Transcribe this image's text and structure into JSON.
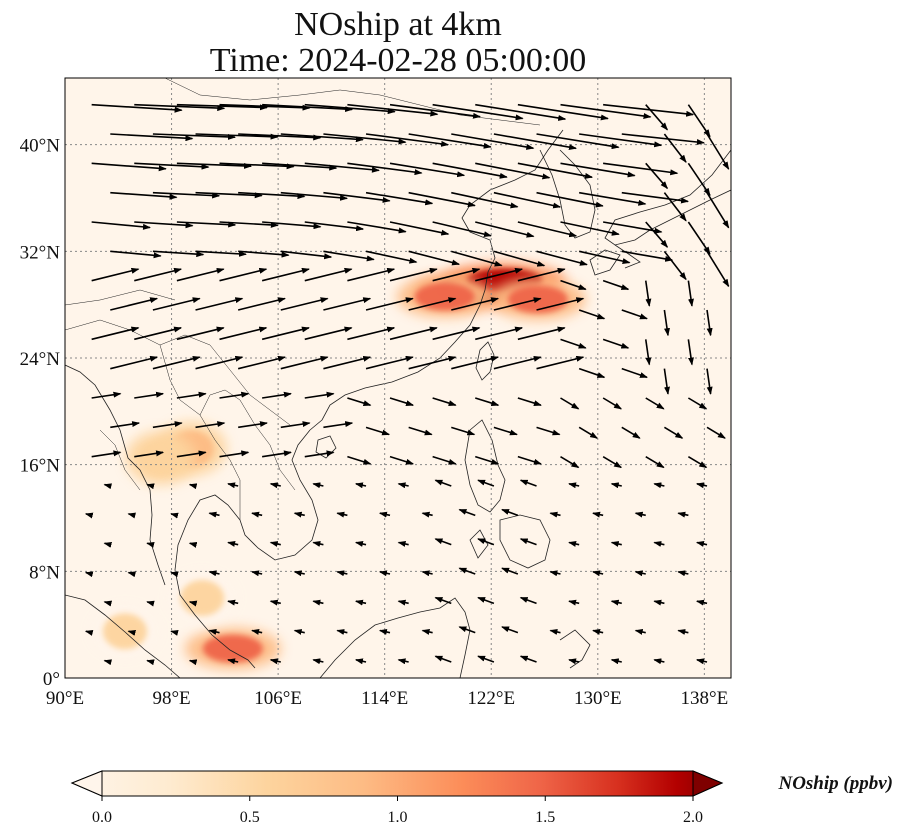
{
  "title": {
    "line1": "NOship at 4km",
    "line2": "Time: 2024-02-28 05:00:00"
  },
  "map": {
    "lon_range": [
      90,
      140
    ],
    "lat_range": [
      0,
      45
    ],
    "lat_ticks": [
      {
        "value": 40,
        "label": "40°N"
      },
      {
        "value": 32,
        "label": "32°N"
      },
      {
        "value": 24,
        "label": "24°N"
      },
      {
        "value": 16,
        "label": "16°N"
      },
      {
        "value": 8,
        "label": "8°N"
      },
      {
        "value": 0,
        "label": "0°"
      }
    ],
    "lon_ticks": [
      {
        "value": 90,
        "label": "90°E"
      },
      {
        "value": 98,
        "label": "98°E"
      },
      {
        "value": 106,
        "label": "106°E"
      },
      {
        "value": 114,
        "label": "114°E"
      },
      {
        "value": 122,
        "label": "122°E"
      },
      {
        "value": 130,
        "label": "130°E"
      },
      {
        "value": 138,
        "label": "138°E"
      }
    ],
    "gridlines": true,
    "background_color": "#fff5ea",
    "plumes": [
      {
        "lon": 120.8,
        "lat": 29.1,
        "intensity": 2.0
      },
      {
        "lon": 123.0,
        "lat": 29.8,
        "intensity": 1.7
      },
      {
        "lon": 118.5,
        "lat": 28.6,
        "intensity": 1.2
      },
      {
        "lon": 125.5,
        "lat": 28.4,
        "intensity": 1.0
      },
      {
        "lon": 102.6,
        "lat": 2.2,
        "intensity": 1.2
      },
      {
        "lon": 99.5,
        "lat": 17.2,
        "intensity": 0.6
      },
      {
        "lon": 97.2,
        "lat": 16.5,
        "intensity": 0.4
      },
      {
        "lon": 94.5,
        "lat": 3.5,
        "intensity": 0.3
      },
      {
        "lon": 100.3,
        "lat": 6.0,
        "intensity": 0.3
      }
    ]
  },
  "colorbar": {
    "label": "NOship (ppbv)",
    "min": 0.0,
    "max": 2.0,
    "ticks": [
      "0.0",
      "0.5",
      "1.0",
      "1.5",
      "2.0"
    ],
    "extend": "both",
    "colors": [
      "#fff5eb",
      "#fdd49e",
      "#fdbb84",
      "#fc8d59",
      "#ef6548",
      "#d7301f",
      "#b30000",
      "#7f0000"
    ]
  }
}
